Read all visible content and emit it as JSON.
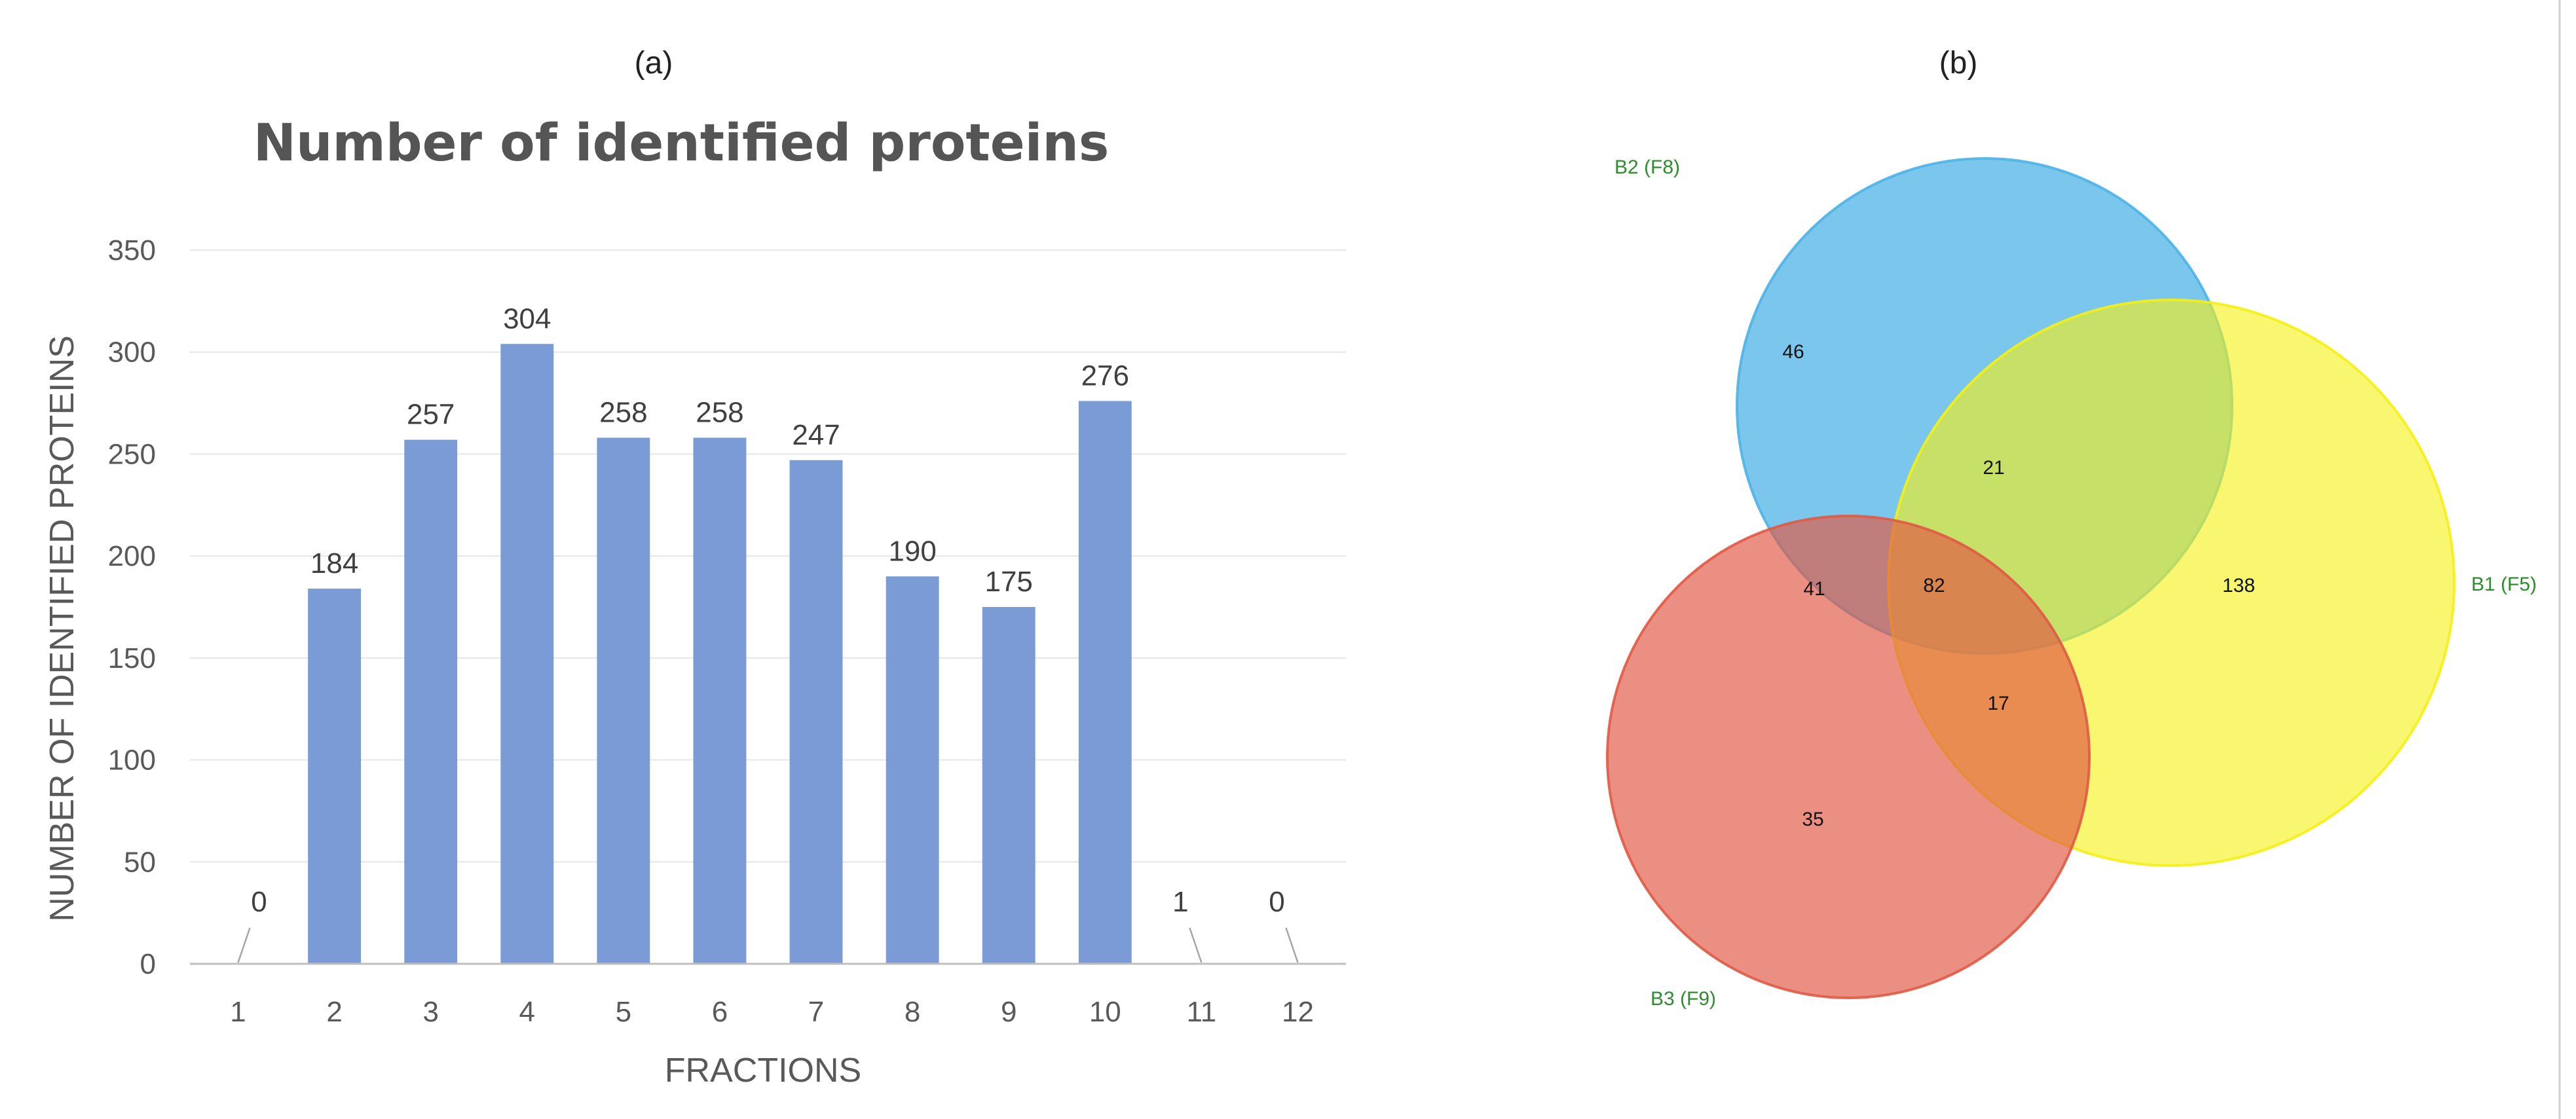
{
  "panel_labels": [
    "(a)",
    "(b)"
  ],
  "chart_data": [
    {
      "type": "bar",
      "title": "Number of identified proteins",
      "xlabel": "FRACTIONS",
      "ylabel": "NUMBER OF IDENTIFIED PROTEINS",
      "categories": [
        "1",
        "2",
        "3",
        "4",
        "5",
        "6",
        "7",
        "8",
        "9",
        "10",
        "11",
        "12"
      ],
      "values": [
        0,
        184,
        257,
        304,
        258,
        258,
        247,
        190,
        175,
        276,
        1,
        0
      ],
      "data_labels": [
        "0",
        "184",
        "257",
        "304",
        "258",
        "258",
        "247",
        "190",
        "175",
        "276",
        "1",
        "0"
      ],
      "ylim": [
        0,
        350
      ],
      "yticks": [
        0,
        50,
        100,
        150,
        200,
        250,
        300,
        350
      ],
      "grid": true,
      "bar_color": "#7a9bd6"
    },
    {
      "type": "venn",
      "sets": [
        {
          "label": "B2 (F8)",
          "color": "#4db3e6"
        },
        {
          "label": "B1 (F5)",
          "color": "#f5f016"
        },
        {
          "label": "B3 (F9)",
          "color": "#e05a45"
        }
      ],
      "regions": [
        {
          "sets": [
            "B2 (F8)"
          ],
          "value": "46"
        },
        {
          "sets": [
            "B1 (F5)"
          ],
          "value": "138"
        },
        {
          "sets": [
            "B3 (F9)"
          ],
          "value": "35"
        },
        {
          "sets": [
            "B2 (F8)",
            "B1 (F5)"
          ],
          "value": "21"
        },
        {
          "sets": [
            "B2 (F8)",
            "B3 (F9)"
          ],
          "value": "41"
        },
        {
          "sets": [
            "B1 (F5)",
            "B3 (F9)"
          ],
          "value": "17"
        },
        {
          "sets": [
            "B2 (F8)",
            "B1 (F5)",
            "B3 (F9)"
          ],
          "value": "82"
        }
      ],
      "label_color": "#2e8b2e"
    }
  ]
}
